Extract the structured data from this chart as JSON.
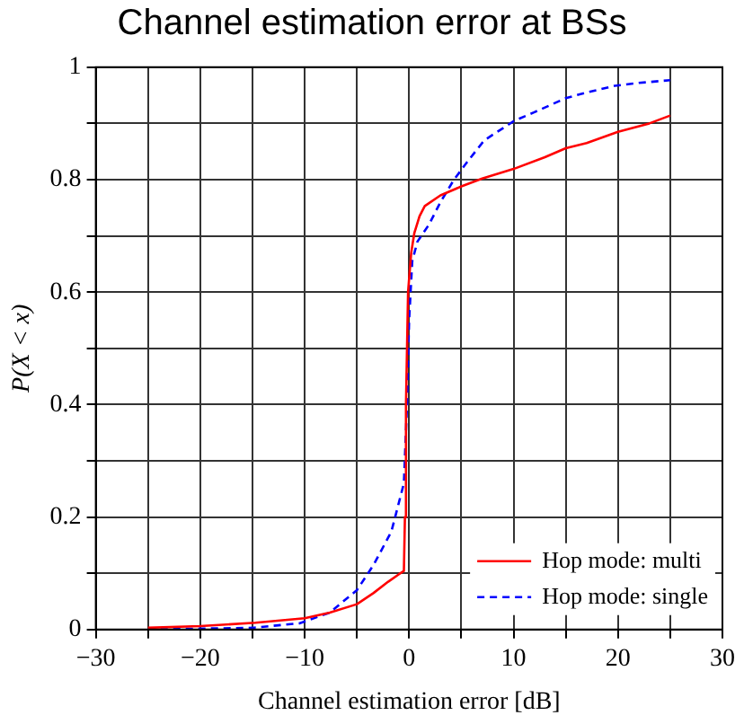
{
  "chart_data": {
    "type": "line",
    "title": "Channel estimation error at BSs",
    "xlabel": "Channel estimation error [dB]",
    "ylabel": "P(X < x)",
    "xlim": [
      -30,
      30
    ],
    "ylim": [
      0,
      1
    ],
    "xticks": [
      -30,
      {
        "value": -25,
        "label": null
      },
      -20,
      {
        "value": -15,
        "label": null
      },
      -10,
      {
        "value": -5,
        "label": null
      },
      0,
      {
        "value": 5,
        "label": null
      },
      10,
      {
        "value": 15,
        "label": null
      },
      20,
      {
        "value": 25,
        "label": null
      },
      30
    ],
    "yticks": [
      0,
      {
        "value": 0.1,
        "label": null
      },
      0.2,
      {
        "value": 0.3,
        "label": null
      },
      0.4,
      {
        "value": 0.5,
        "label": null
      },
      0.6,
      {
        "value": 0.7,
        "label": null
      },
      0.8,
      {
        "value": 0.9,
        "label": null
      },
      1
    ],
    "grid": true,
    "legend": "bottom right",
    "marker": "none",
    "series": [
      {
        "name": "Hop mode: multi",
        "color": "#ff0000",
        "line_style": "solid",
        "x": [
          -25,
          -20,
          -14.7,
          -10,
          -7.6,
          -5,
          -3.4,
          -2,
          -1,
          -0.5,
          -0.4,
          -0.3,
          -0.1,
          0.2,
          0.5,
          1,
          1.5,
          3,
          5,
          7,
          10,
          13,
          15,
          17,
          20,
          23,
          25
        ],
        "values": [
          0.003,
          0.006,
          0.012,
          0.02,
          0.03,
          0.045,
          0.065,
          0.085,
          0.098,
          0.104,
          0.2,
          0.4,
          0.6,
          0.67,
          0.705,
          0.735,
          0.753,
          0.772,
          0.788,
          0.802,
          0.819,
          0.84,
          0.856,
          0.865,
          0.885,
          0.9,
          0.914
        ]
      },
      {
        "name": "Hop mode: single",
        "color": "#0000ff",
        "line_style": "dashed",
        "x": [
          -25,
          -15,
          -10.5,
          -7.6,
          -5,
          -3.4,
          -1.7,
          -0.5,
          -0.2,
          0,
          0.3,
          0.8,
          1.9,
          3,
          4.3,
          5.5,
          7.2,
          10.1,
          12,
          15,
          17,
          19.7,
          22,
          25
        ],
        "values": [
          0,
          0.003,
          0.011,
          0.03,
          0.07,
          0.115,
          0.174,
          0.26,
          0.4,
          0.55,
          0.655,
          0.69,
          0.72,
          0.76,
          0.8,
          0.83,
          0.87,
          0.905,
          0.92,
          0.945,
          0.955,
          0.967,
          0.972,
          0.977
        ]
      }
    ]
  }
}
